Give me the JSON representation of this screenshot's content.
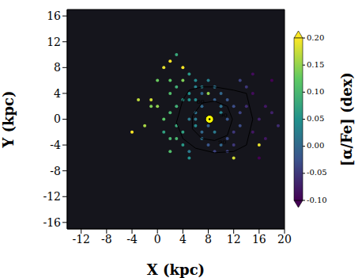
{
  "chart_data": {
    "type": "scatter",
    "x_label": "X (kpc)",
    "y_label": "Y (kpc)",
    "xlim": [
      -14.2,
      20
    ],
    "ylim": [
      -17,
      17
    ],
    "xticks": [
      -12,
      -8,
      -4,
      0,
      4,
      8,
      12,
      16,
      20
    ],
    "yticks": [
      -16,
      -12,
      -8,
      -4,
      0,
      4,
      8,
      12,
      16
    ],
    "grid": false,
    "points": {
      "x": [
        1,
        2,
        3,
        0,
        -1,
        2,
        3,
        4,
        1,
        2,
        5,
        6,
        7,
        9,
        10,
        11,
        6,
        7,
        12,
        13,
        5,
        6,
        4,
        5,
        7,
        8,
        10,
        11,
        12,
        9,
        3,
        2,
        4,
        5,
        6,
        8,
        9,
        10,
        11,
        13,
        14,
        15,
        16,
        14,
        15,
        17,
        16,
        18,
        13,
        12,
        0,
        -2,
        1,
        3,
        2,
        -1,
        4,
        3,
        2,
        5,
        6,
        7,
        8,
        9,
        10,
        11,
        12,
        7,
        8,
        9,
        4,
        5,
        6,
        15,
        16,
        17,
        18,
        19,
        -3,
        -4
      ],
      "y": [
        0,
        1,
        -1,
        2,
        3,
        4,
        5,
        6,
        -2,
        -3,
        0,
        1,
        2,
        3,
        1,
        0,
        -1,
        -2,
        2,
        1,
        4,
        5,
        -4,
        -5,
        -3,
        -4,
        -4,
        -3,
        -2,
        5,
        2,
        6,
        8,
        7,
        6,
        6,
        5,
        4,
        -5,
        -1,
        2,
        -2,
        0,
        5,
        4,
        -3,
        -6,
        1,
        6,
        -6,
        6,
        -1,
        8,
        10,
        -5,
        2,
        3,
        -3,
        9,
        -6,
        3,
        4,
        -1,
        -2,
        2,
        3,
        -4,
        5,
        4,
        -5,
        -2,
        3,
        0,
        7,
        -4,
        2,
        6,
        -1,
        3,
        -2
      ],
      "alpha": [
        0.12,
        0.1,
        0.08,
        0.15,
        0.18,
        0.11,
        0.09,
        0.14,
        0.07,
        0.1,
        0.02,
        0.01,
        0.0,
        -0.01,
        0.03,
        -0.02,
        0.04,
        0.0,
        -0.03,
        -0.04,
        0.05,
        0.03,
        0.06,
        0.02,
        0.01,
        -0.02,
        0.0,
        -0.03,
        -0.05,
        0.02,
        0.09,
        0.12,
        0.2,
        0.06,
        0.04,
        0.03,
        0.01,
        0.0,
        -0.04,
        -0.03,
        -0.06,
        -0.08,
        -0.07,
        -0.05,
        -0.09,
        -0.08,
        -0.1,
        -0.07,
        -0.04,
        0.18,
        0.13,
        0.16,
        0.19,
        0.08,
        0.11,
        0.14,
        0.06,
        0.1,
        0.2,
        0.05,
        0.04,
        0.0,
        -0.01,
        0.02,
        0.01,
        -0.02,
        -0.05,
        0.03,
        0.15,
        -0.04,
        0.07,
        0.05,
        0.02,
        -0.09,
        0.19,
        -0.08,
        -0.1,
        -0.06,
        0.17,
        0.2
      ]
    },
    "sun": {
      "x": 8.2,
      "y": 0
    },
    "contours": [
      {
        "label": "60",
        "x": [
          3,
          4,
          5,
          7,
          9,
          12,
          14,
          15,
          14.5,
          14,
          12,
          9,
          6,
          4,
          3
        ],
        "y": [
          -0.5,
          3,
          4.5,
          5,
          5,
          4.5,
          4,
          0,
          -2,
          -4,
          -5,
          -5.2,
          -4.5,
          -3,
          -0.5
        ],
        "label_at": [
          [
            6.8,
            2.6
          ]
        ]
      },
      {
        "label": "90",
        "x": [
          5.5,
          7,
          9,
          11,
          11.8,
          11,
          9,
          7,
          5.5,
          5.5
        ],
        "y": [
          0.5,
          2.5,
          2.8,
          2,
          0,
          -2.5,
          -3.3,
          -3,
          -1.5,
          0.5
        ],
        "label_at": [
          [
            10.4,
            0.5
          ],
          [
            10.2,
            -3.6
          ]
        ]
      }
    ],
    "colorbar": {
      "label": "[α/Fe] (dex)",
      "range": [
        -0.1,
        0.2
      ],
      "ticks": [
        {
          "value": -0.1,
          "label": "-0.10"
        },
        {
          "value": -0.05,
          "label": "-0.05"
        },
        {
          "value": 0,
          "label": "0.00"
        },
        {
          "value": 0.05,
          "label": "0.05"
        },
        {
          "value": 0.1,
          "label": "0.10"
        },
        {
          "value": 0.15,
          "label": "0.15"
        },
        {
          "value": 0.2,
          "label": "0.20"
        }
      ]
    }
  }
}
